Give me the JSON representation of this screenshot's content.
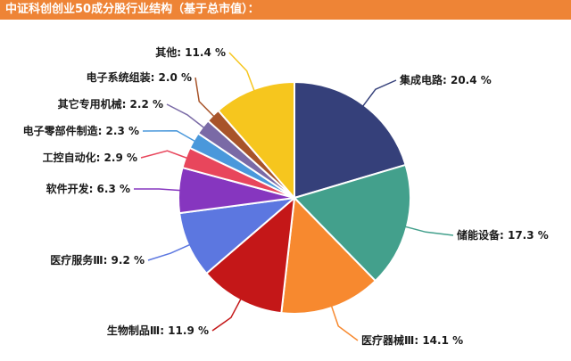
{
  "header": {
    "title": "中证科创创业50成分股行业结构（基于总市值）："
  },
  "chart_data": {
    "type": "pie",
    "title": "中证科创创业50成分股行业结构（基于总市值）：",
    "unit": "%",
    "slices": [
      {
        "label": "集成电路",
        "value": 20.4,
        "color": "#35407a"
      },
      {
        "label": "储能设备",
        "value": 17.3,
        "color": "#43a08c"
      },
      {
        "label": "医疗器械Ⅲ",
        "value": 14.1,
        "color": "#f7892f"
      },
      {
        "label": "生物制品Ⅲ",
        "value": 11.9,
        "color": "#c41718"
      },
      {
        "label": "医疗服务Ⅲ",
        "value": 9.2,
        "color": "#5c77e0"
      },
      {
        "label": "软件开发",
        "value": 6.3,
        "color": "#8636bf"
      },
      {
        "label": "工控自动化",
        "value": 2.9,
        "color": "#e8465c"
      },
      {
        "label": "电子零部件制造",
        "value": 2.3,
        "color": "#4a98db"
      },
      {
        "label": "其它专用机械",
        "value": 2.2,
        "color": "#7a6aa6"
      },
      {
        "label": "电子系统组装",
        "value": 2.0,
        "color": "#a8542a"
      },
      {
        "label": "其他",
        "value": 11.4,
        "color": "#f6c61e"
      }
    ],
    "legend": "none",
    "data_labels": "outside"
  }
}
